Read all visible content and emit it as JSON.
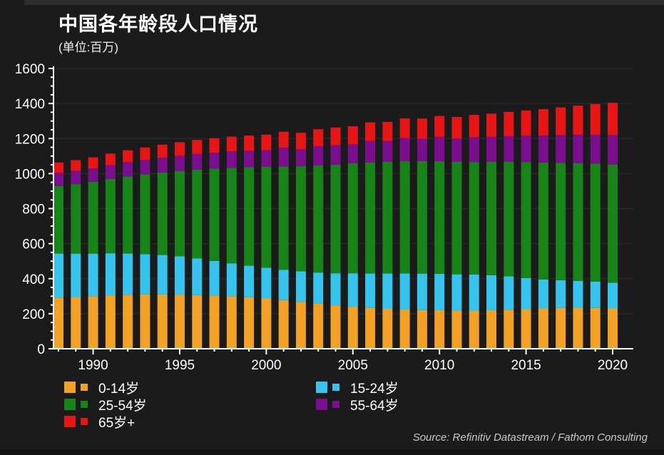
{
  "title": "中国各年龄段人口情况",
  "subtitle": "(单位:百万)",
  "source": "Source: Refinitiv Datastream / Fathom Consulting",
  "colors": {
    "background": "#1b1b1b",
    "axis": "#ffffff",
    "grid": "#2e2e2e",
    "text": "#ffffff",
    "source_text": "#c9c9c9"
  },
  "chart_data": {
    "type": "bar",
    "stacked": true,
    "title": "中国各年龄段人口情况",
    "subtitle": "(单位:百万)",
    "xlabel": "",
    "ylabel": "百万",
    "ylim": [
      0,
      1600
    ],
    "grid": true,
    "legend_position": "bottom",
    "yticks": [
      0,
      200,
      400,
      600,
      800,
      1000,
      1200,
      1400,
      1600
    ],
    "y_minor_step": 50,
    "xticks": [
      1990,
      1995,
      2000,
      2005,
      2010,
      2015,
      2020
    ],
    "x": [
      1988,
      1989,
      1990,
      1991,
      1992,
      1993,
      1994,
      1995,
      1996,
      1997,
      1998,
      1999,
      2000,
      2001,
      2002,
      2003,
      2004,
      2005,
      2006,
      2007,
      2008,
      2009,
      2010,
      2011,
      2012,
      2013,
      2014,
      2015,
      2016,
      2017,
      2018,
      2019,
      2020
    ],
    "series": [
      {
        "name": "0-14岁",
        "color": "#F2A124",
        "values": [
          292,
          295,
          300,
          305,
          308,
          310,
          310,
          309,
          306,
          303,
          300,
          294,
          287,
          278,
          268,
          258,
          248,
          240,
          233,
          228,
          224,
          221,
          220,
          218,
          218,
          220,
          223,
          226,
          230,
          233,
          234,
          233,
          230
        ]
      },
      {
        "name": "15-24岁",
        "color": "#35C4EE",
        "values": [
          252,
          248,
          243,
          240,
          236,
          230,
          225,
          219,
          210,
          198,
          188,
          180,
          175,
          173,
          174,
          177,
          183,
          191,
          197,
          202,
          206,
          208,
          208,
          207,
          206,
          200,
          190,
          178,
          165,
          158,
          153,
          150,
          147
        ]
      },
      {
        "name": "25-54岁",
        "color": "#178417",
        "values": [
          385,
          397,
          410,
          424,
          440,
          455,
          471,
          487,
          507,
          527,
          545,
          562,
          577,
          590,
          601,
          611,
          620,
          628,
          634,
          638,
          641,
          642,
          642,
          642,
          642,
          648,
          655,
          662,
          668,
          671,
          673,
          674,
          675
        ]
      },
      {
        "name": "55-64岁",
        "color": "#7B0E8E",
        "values": [
          75,
          76,
          77,
          79,
          81,
          83,
          85,
          87,
          89,
          91,
          93,
          94,
          95,
          107,
          96,
          110,
          112,
          108,
          122,
          118,
          132,
          128,
          140,
          133,
          142,
          142,
          146,
          150,
          154,
          158,
          162,
          165,
          168
        ]
      },
      {
        "name": "65岁+",
        "color": "#E91515",
        "values": [
          59,
          61,
          63,
          66,
          68,
          71,
          74,
          77,
          80,
          83,
          85,
          87,
          88,
          91,
          94,
          97,
          100,
          103,
          106,
          109,
          112,
          115,
          119,
          123,
          127,
          132,
          138,
          144,
          151,
          158,
          166,
          175,
          184
        ]
      }
    ]
  },
  "legend": {
    "columns": [
      [
        0,
        2,
        4
      ],
      [
        1,
        3
      ]
    ]
  }
}
